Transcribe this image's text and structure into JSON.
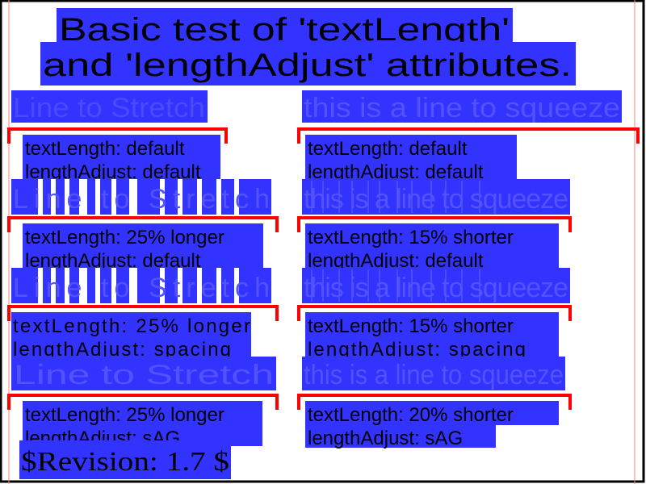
{
  "title": {
    "line1": "Basic test of 'textLength'",
    "line2": "and 'lengthAdjust' attributes."
  },
  "colors": {
    "highlight": "#3333ff",
    "bracket": "#ff0000",
    "text_blue": "#3333ff",
    "text_black": "#000000",
    "frame": "#000000",
    "guide": "#ff8080"
  },
  "left_column": {
    "heading": "Line to Stretch",
    "samples": [
      {
        "sample": "Line to Stretch",
        "caption1": "textLength: default",
        "caption2": "lengthAdjust: default"
      },
      {
        "sample": "Line to Stretch",
        "caption1": "textLength: 25% longer",
        "caption2": "lengthAdjust: default"
      },
      {
        "sample": "Line to Stretch",
        "caption1": "textLength: 25% longer",
        "caption2": "lengthAdjust: spacing"
      },
      {
        "sample": "Line to Stretch",
        "caption1": "textLength: 25% longer",
        "caption2": "lengthAdjust: sAG"
      }
    ]
  },
  "right_column": {
    "heading": "this is a line to squeeze",
    "samples": [
      {
        "sample": "this is a line to squeeze",
        "caption1": "textLength: default",
        "caption2": "lengthAdjust: default"
      },
      {
        "sample": "this is a line to squeeze",
        "caption1": "textLength: 15% shorter",
        "caption2": "lengthAdjust: default"
      },
      {
        "sample": "this is a line to squeeze",
        "caption1": "textLength: 15% shorter",
        "caption2": "lengthAdjust: spacing"
      },
      {
        "sample": "this is a line to squeeze",
        "caption1": "textLength: 20% shorter",
        "caption2": "lengthAdjust: sAG"
      }
    ]
  },
  "revision": "$Revision: 1.7 $"
}
